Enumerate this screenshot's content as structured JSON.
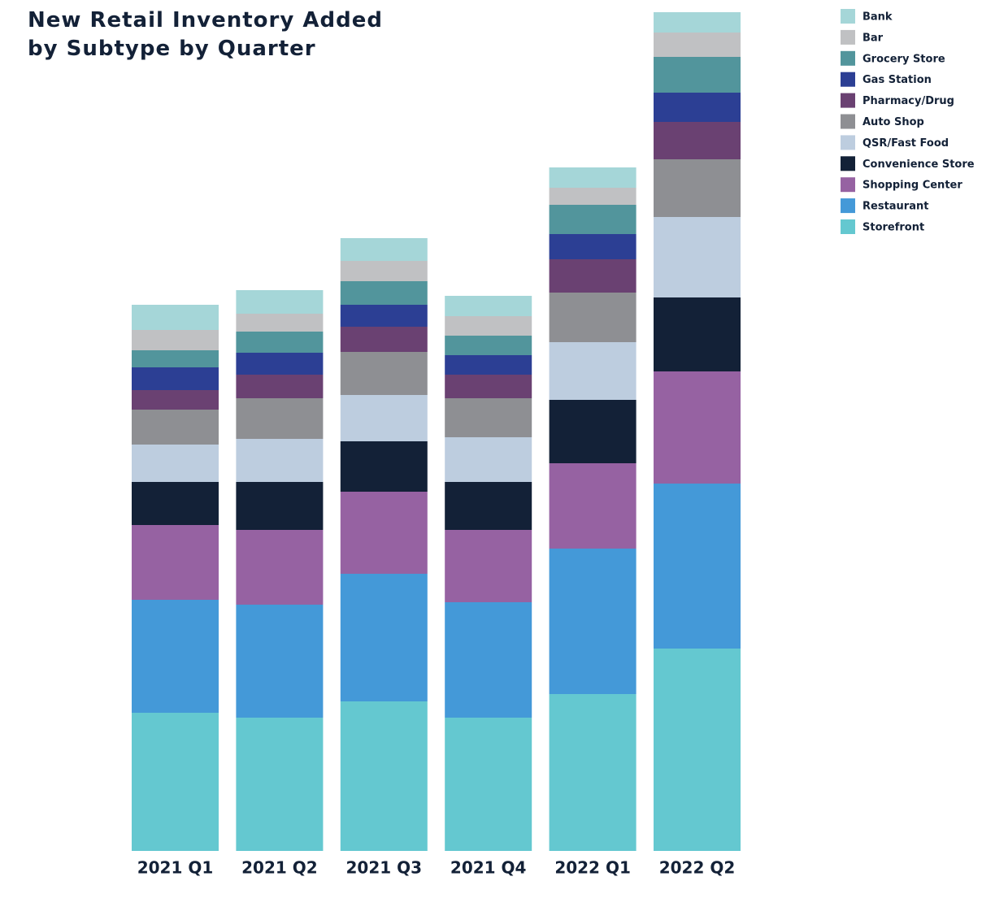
{
  "chart_data": {
    "type": "stacked-bar",
    "title": "New Retail Inventory Added by Subtype by Quarter",
    "categories": [
      "2021 Q1",
      "2021 Q2",
      "2021 Q3",
      "2021 Q4",
      "2022 Q1",
      "2022 Q2"
    ],
    "series": [
      {
        "name": "Storefront",
        "color": "#64c8d0",
        "values": [
          170,
          164,
          184,
          164,
          193,
          249
        ]
      },
      {
        "name": "Restaurant",
        "color": "#4499d8",
        "values": [
          139,
          139,
          157,
          142,
          179,
          203
        ]
      },
      {
        "name": "Shopping Center",
        "color": "#9662a2",
        "values": [
          92,
          92,
          101,
          89,
          105,
          138
        ]
      },
      {
        "name": "Convenience Store",
        "color": "#132137",
        "values": [
          53,
          59,
          62,
          59,
          78,
          91
        ]
      },
      {
        "name": "QSR/Fast Food",
        "color": "#bdcddf",
        "values": [
          46,
          53,
          57,
          55,
          71,
          99
        ]
      },
      {
        "name": "Auto Shop",
        "color": "#8e8f93",
        "values": [
          43,
          50,
          53,
          48,
          61,
          71
        ]
      },
      {
        "name": "Pharmacy/Drug",
        "color": "#6a4172",
        "values": [
          24,
          29,
          31,
          29,
          41,
          46
        ]
      },
      {
        "name": "Gas Station",
        "color": "#2c3f94",
        "values": [
          28,
          27,
          27,
          24,
          31,
          36
        ]
      },
      {
        "name": "Grocery Store",
        "color": "#52959c",
        "values": [
          21,
          26,
          29,
          24,
          36,
          44
        ]
      },
      {
        "name": "Bar",
        "color": "#c0c1c3",
        "values": [
          25,
          22,
          25,
          24,
          21,
          30
        ]
      },
      {
        "name": "Bank",
        "color": "#a5d6d8",
        "values": [
          31,
          29,
          28,
          25,
          25,
          25
        ]
      }
    ]
  }
}
